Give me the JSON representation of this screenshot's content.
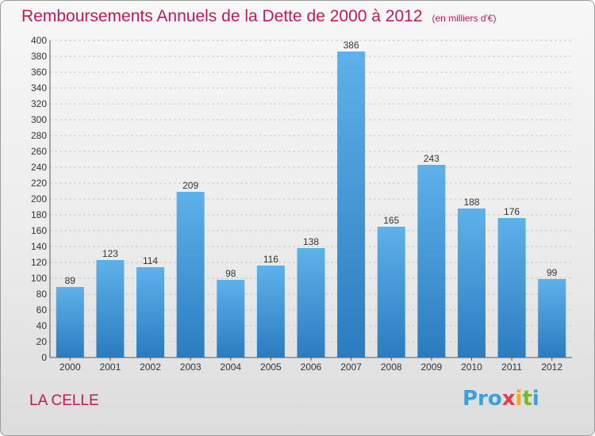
{
  "chart_data": {
    "type": "bar",
    "title": "Remboursements Annuels de la Dette de 2000 à 2012",
    "unit_note": "(en milliers d'€)",
    "categories": [
      "2000",
      "2001",
      "2002",
      "2003",
      "2004",
      "2005",
      "2006",
      "2007",
      "2008",
      "2009",
      "2010",
      "2011",
      "2012"
    ],
    "values": [
      89,
      123,
      114,
      209,
      98,
      116,
      138,
      386,
      165,
      243,
      188,
      176,
      99
    ],
    "ylim": [
      0,
      400
    ],
    "yticks": [
      0,
      20,
      40,
      60,
      80,
      100,
      120,
      140,
      160,
      180,
      200,
      220,
      240,
      260,
      280,
      300,
      320,
      340,
      360,
      380,
      400
    ],
    "grid": true,
    "bar_color": "#3a96dc",
    "bar_color_light": "#5fb1ea",
    "bar_color_dark": "#2a7cc0"
  },
  "footer": {
    "commune": "LA CELLE",
    "logo": [
      "Pro",
      "x",
      "i",
      "t",
      "i"
    ]
  },
  "colors": {
    "title": "#c2185b",
    "grid": "#c8c8c8"
  }
}
